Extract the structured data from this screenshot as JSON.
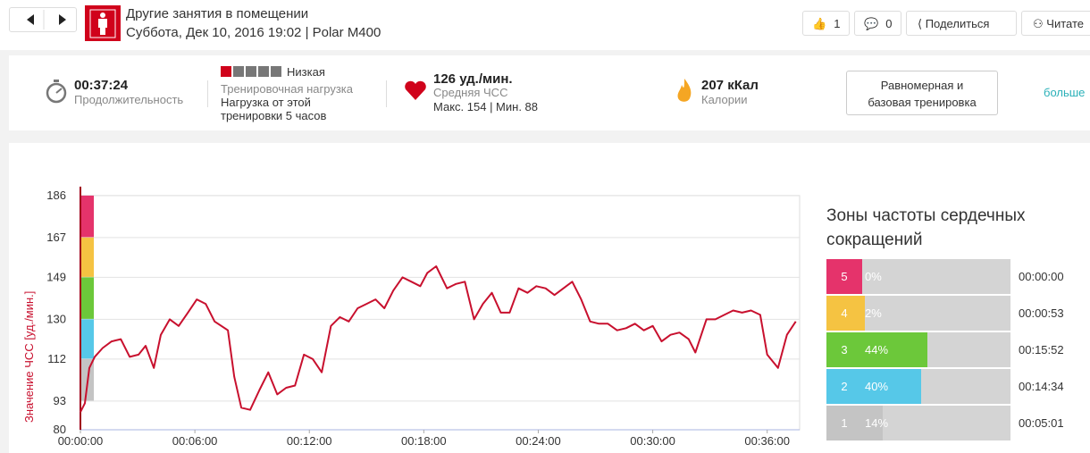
{
  "header": {
    "title": "Другие занятия в помещении",
    "subtitle": "Суббота, Дек 10, 2016 19:02 | Polar M400",
    "likes": "1",
    "comments": "0",
    "share": "Поделиться",
    "read": "Читате"
  },
  "summary": {
    "duration": "00:37:24",
    "duration_label": "Продолжительность",
    "load_level": "Низкая",
    "load_label": "Тренировочная нагрузка",
    "load_note": "Нагрузка от этой тренировки 5 часов",
    "hr": "126 уд./мин.",
    "hr_label": "Средняя ЧСС",
    "hr_detail": "Макс. 154 | Мин. 88",
    "calories": "207 кКал",
    "calories_label": "Калории",
    "benefit": "Равномерная и базовая тренировка",
    "more": "больше"
  },
  "chart_data": [
    {
      "type": "line",
      "y_label": "Значение ЧСС [уд./мин.]",
      "color": "#c8102e",
      "x": [
        0,
        14,
        28,
        45,
        70,
        98,
        127,
        155,
        183,
        205,
        231,
        253,
        281,
        309,
        338,
        366,
        394,
        422,
        464,
        484,
        506,
        534,
        563,
        591,
        619,
        647,
        675,
        703,
        731,
        759,
        788,
        816,
        844,
        872,
        900,
        928,
        956,
        984,
        1013,
        1041,
        1069,
        1091,
        1119,
        1153,
        1181,
        1209,
        1238,
        1266,
        1294,
        1322,
        1350,
        1378,
        1406,
        1434,
        1463,
        1491,
        1519,
        1547,
        1575,
        1603,
        1631,
        1659,
        1688,
        1716,
        1744,
        1772,
        1800,
        1828,
        1856,
        1884,
        1913,
        1934,
        1969,
        1997,
        2025,
        2053,
        2081,
        2109,
        2138,
        2160,
        2194,
        2222,
        2250
      ],
      "values": [
        88,
        92,
        108,
        113,
        117,
        120,
        121,
        113,
        114,
        118,
        108,
        123,
        130,
        127,
        133,
        139,
        137,
        129,
        125,
        104,
        90,
        89,
        98,
        106,
        96,
        99,
        100,
        114,
        112,
        106,
        127,
        131,
        129,
        135,
        137,
        139,
        135,
        143,
        149,
        147,
        145,
        151,
        154,
        144,
        146,
        147,
        130,
        137,
        142,
        133,
        133,
        144,
        142,
        145,
        144,
        141,
        144,
        147,
        139,
        129,
        128,
        128,
        125,
        126,
        128,
        125,
        127,
        120,
        123,
        124,
        121,
        115,
        130,
        130,
        132,
        134,
        133,
        134,
        132,
        114,
        108,
        123,
        129
      ],
      "xlim": [
        0,
        2262
      ],
      "ylim": [
        80,
        190
      ],
      "xticks": [
        {
          "value": 0,
          "label": "00:00:00"
        },
        {
          "value": 360,
          "label": "00:06:00"
        },
        {
          "value": 720,
          "label": "00:12:00"
        },
        {
          "value": 1080,
          "label": "00:18:00"
        },
        {
          "value": 1440,
          "label": "00:24:00"
        },
        {
          "value": 1800,
          "label": "00:30:00"
        },
        {
          "value": 2160,
          "label": "00:36:00"
        }
      ],
      "yticks": [
        186,
        167,
        149,
        130,
        112,
        93,
        80
      ],
      "grid": true
    },
    {
      "type": "bar",
      "title": "Зоны частоты сердечных сокращений",
      "categories": [
        "5",
        "4",
        "3",
        "2",
        "1"
      ],
      "values": [
        0,
        2,
        44,
        40,
        14
      ],
      "value_labels": [
        "0%",
        "2%",
        "44%",
        "40%",
        "14%"
      ],
      "times": [
        "00:00:00",
        "00:00:53",
        "00:15:52",
        "00:14:34",
        "00:05:01"
      ],
      "colors": [
        "#e5336b",
        "#f5c342",
        "#6cc83a",
        "#56c8e8",
        "#c4c4c4"
      ],
      "xlim": [
        0,
        100
      ]
    }
  ]
}
